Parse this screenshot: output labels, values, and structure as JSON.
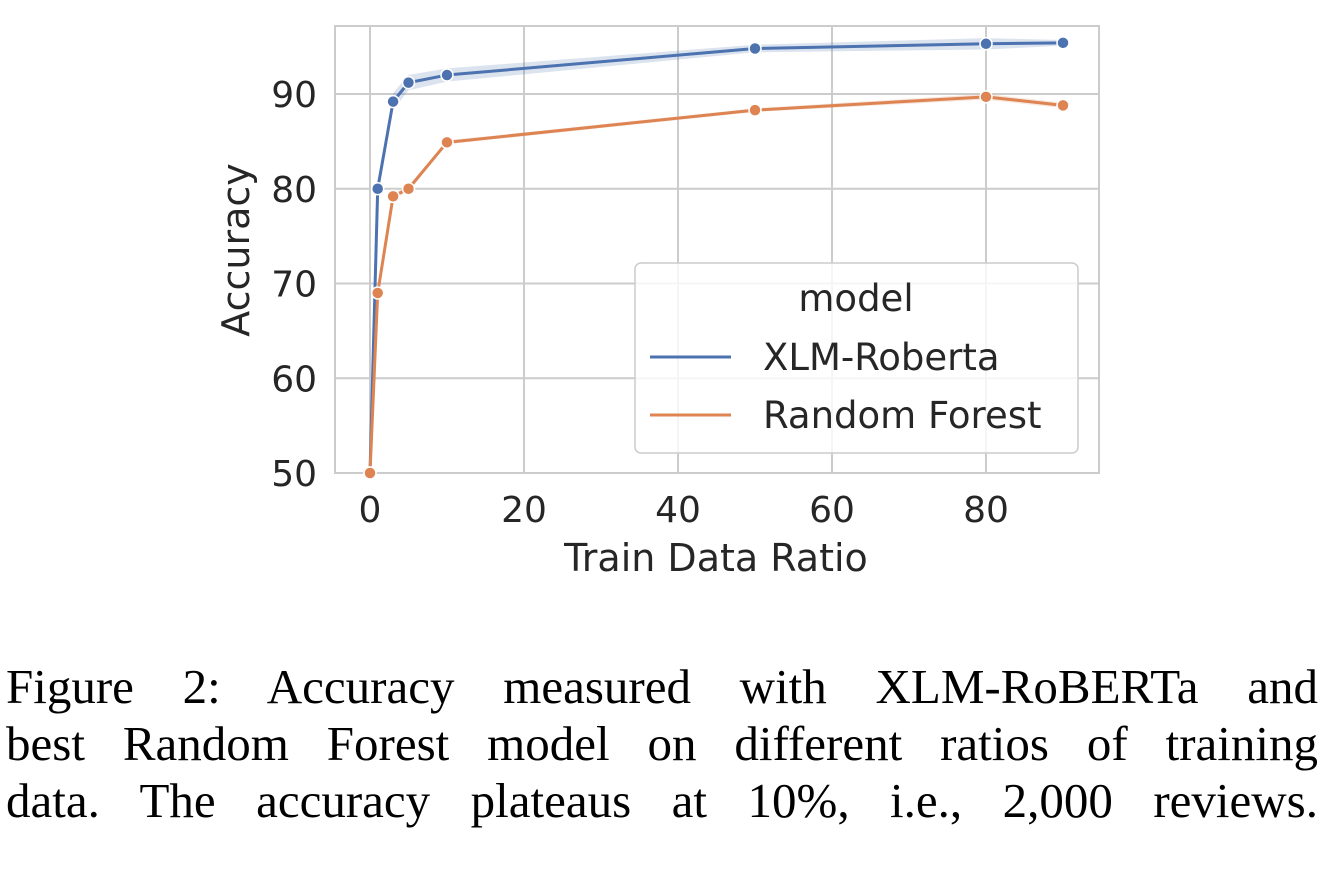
{
  "chart_data": {
    "type": "line",
    "title": "",
    "xlabel": "Train Data Ratio",
    "ylabel": "Accuracy",
    "xlim": [
      -4.5,
      95
    ],
    "ylim": [
      50,
      97
    ],
    "xticks": [
      0,
      20,
      40,
      60,
      80
    ],
    "xtick_labels": [
      "0",
      "20",
      "40",
      "60",
      "80"
    ],
    "yticks": [
      50,
      60,
      70,
      80,
      90
    ],
    "ytick_labels": [
      "50",
      "60",
      "70",
      "80",
      "90"
    ],
    "grid": true,
    "legend": {
      "title": "model",
      "placement": "center-right",
      "entries": [
        "XLM-Roberta",
        "Random Forest"
      ]
    },
    "x": [
      0,
      1,
      3,
      5,
      10,
      50,
      80,
      90
    ],
    "series": [
      {
        "name": "XLM-Roberta",
        "color": "#4c72b0",
        "values": [
          50,
          80,
          89.2,
          91.2,
          92.0,
          94.8,
          95.3,
          95.4
        ],
        "ci_halfwidth": [
          0,
          0.3,
          0.9,
          0.8,
          0.7,
          0.4,
          0.6,
          0.3
        ]
      },
      {
        "name": "Random Forest",
        "color": "#dd8452",
        "values": [
          50,
          69.0,
          79.2,
          80.0,
          84.9,
          88.3,
          89.7,
          88.8
        ],
        "ci_halfwidth": [
          0,
          0.2,
          0.3,
          0.3,
          0.2,
          0.2,
          0.3,
          0.3
        ]
      }
    ]
  },
  "caption": {
    "lines": [
      "Figure 2: Accuracy measured with XLM-RoBERTa and",
      "best Random Forest model on different ratios of training",
      "data. The accuracy plateaus at  10%, i.e., 2,000 reviews."
    ]
  }
}
